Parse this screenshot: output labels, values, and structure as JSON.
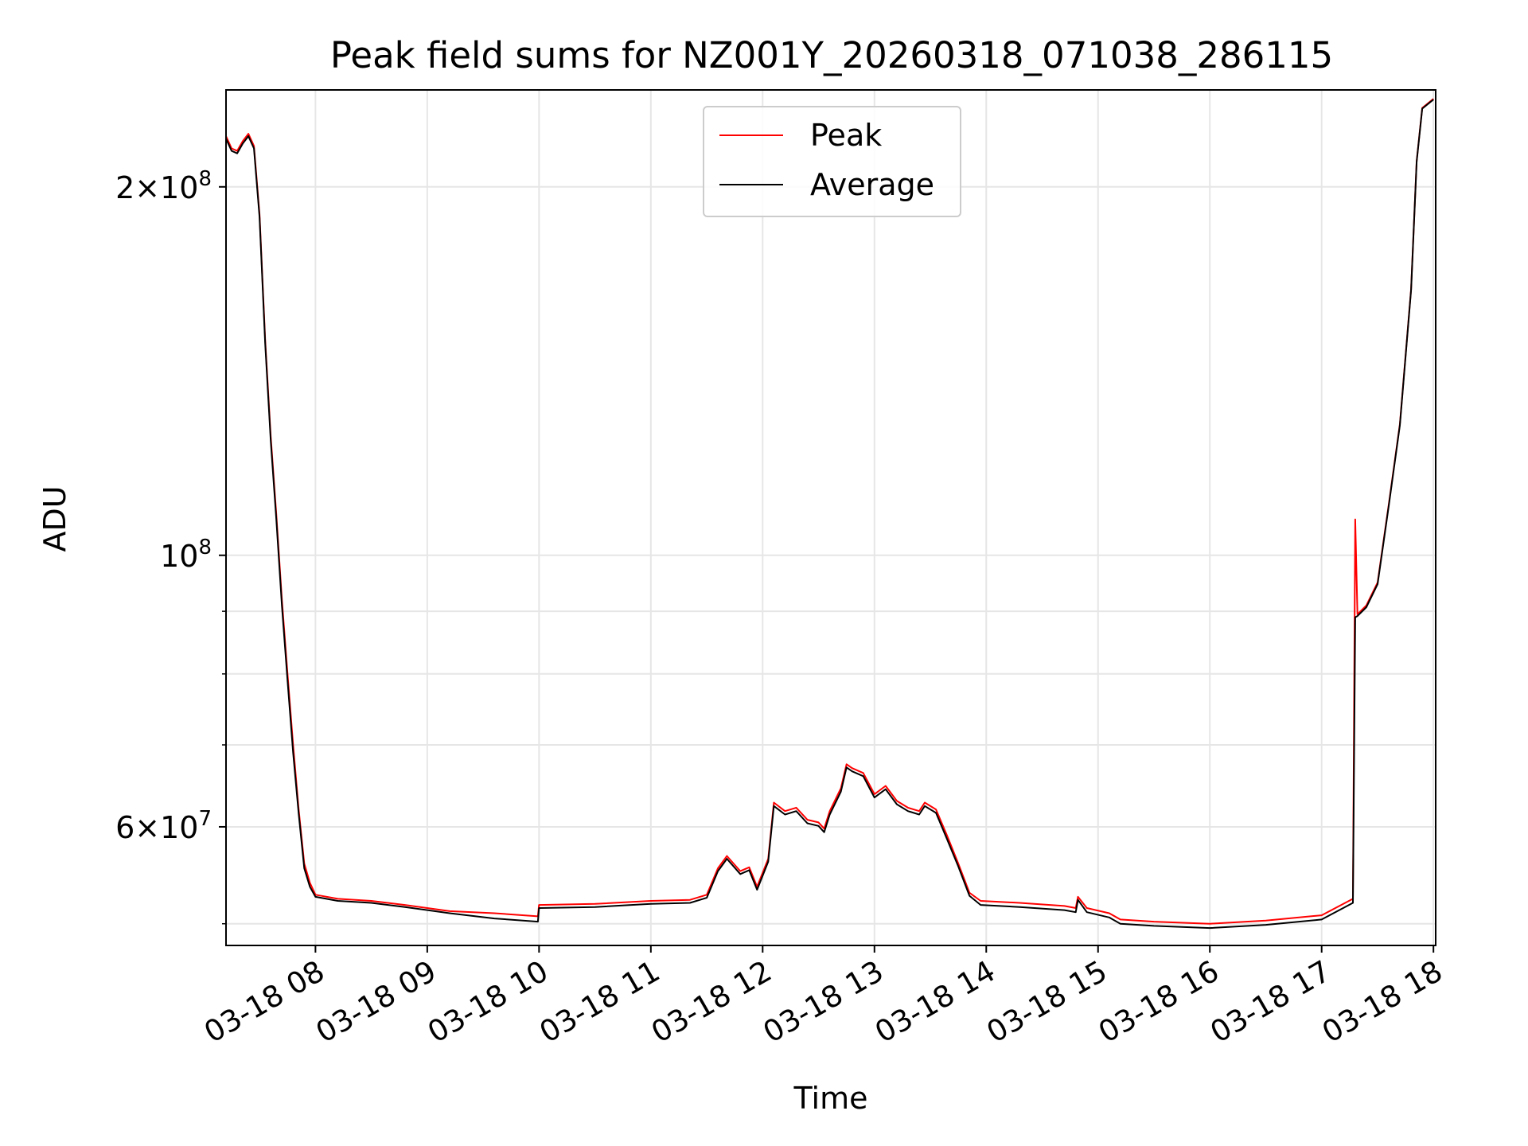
{
  "chart_data": {
    "type": "line",
    "title": "Peak field sums for NZ001Y_20260318_071038_286115",
    "xlabel": "Time",
    "ylabel": "ADU",
    "yscale": "log",
    "grid": true,
    "legend_position": "top-center",
    "xlim_hours": [
      7.2,
      18.02
    ],
    "ylim": [
      48000000,
      240000000
    ],
    "x_ticks": [
      {
        "hour": 8,
        "label": "03-18 08"
      },
      {
        "hour": 9,
        "label": "03-18 09"
      },
      {
        "hour": 10,
        "label": "03-18 10"
      },
      {
        "hour": 11,
        "label": "03-18 11"
      },
      {
        "hour": 12,
        "label": "03-18 12"
      },
      {
        "hour": 13,
        "label": "03-18 13"
      },
      {
        "hour": 14,
        "label": "03-18 14"
      },
      {
        "hour": 15,
        "label": "03-18 15"
      },
      {
        "hour": 16,
        "label": "03-18 16"
      },
      {
        "hour": 17,
        "label": "03-18 17"
      },
      {
        "hour": 18,
        "label": "03-18 18"
      }
    ],
    "y_major_ticks": [
      {
        "value": 60000000,
        "base": "6",
        "exp": "7"
      },
      {
        "value": 100000000,
        "base": "",
        "exp": "8"
      },
      {
        "value": 200000000,
        "base": "2",
        "exp": "8"
      }
    ],
    "y_minor_ticks": [
      50000000,
      70000000,
      80000000,
      90000000
    ],
    "series": [
      {
        "name": "Peak",
        "color": "#ff0000",
        "points": [
          [
            7.2,
            220
          ],
          [
            7.25,
            215
          ],
          [
            7.3,
            214
          ],
          [
            7.35,
            218
          ],
          [
            7.4,
            221
          ],
          [
            7.45,
            216
          ],
          [
            7.5,
            190
          ],
          [
            7.55,
            150
          ],
          [
            7.6,
            125
          ],
          [
            7.65,
            108
          ],
          [
            7.7,
            92
          ],
          [
            7.75,
            80
          ],
          [
            7.8,
            70
          ],
          [
            7.85,
            62
          ],
          [
            7.9,
            56
          ],
          [
            7.95,
            54
          ],
          [
            8.0,
            52.8
          ],
          [
            8.2,
            52.4
          ],
          [
            8.5,
            52.2
          ],
          [
            8.8,
            51.8
          ],
          [
            9.2,
            51.2
          ],
          [
            9.6,
            51.0
          ],
          [
            9.99,
            50.7
          ],
          [
            10.0,
            51.8
          ],
          [
            10.5,
            51.9
          ],
          [
            11.0,
            52.2
          ],
          [
            11.35,
            52.3
          ],
          [
            11.5,
            52.8
          ],
          [
            11.6,
            55.5
          ],
          [
            11.68,
            56.8
          ],
          [
            11.8,
            55.2
          ],
          [
            11.88,
            55.6
          ],
          [
            11.95,
            53.6
          ],
          [
            12.05,
            56.5
          ],
          [
            12.1,
            62.8
          ],
          [
            12.2,
            61.8
          ],
          [
            12.3,
            62.2
          ],
          [
            12.4,
            60.8
          ],
          [
            12.5,
            60.5
          ],
          [
            12.55,
            59.8
          ],
          [
            12.6,
            61.8
          ],
          [
            12.7,
            64.5
          ],
          [
            12.75,
            67.5
          ],
          [
            12.8,
            67.0
          ],
          [
            12.9,
            66.4
          ],
          [
            13.0,
            63.8
          ],
          [
            13.1,
            64.8
          ],
          [
            13.2,
            63.0
          ],
          [
            13.3,
            62.2
          ],
          [
            13.4,
            61.8
          ],
          [
            13.45,
            62.8
          ],
          [
            13.55,
            62.0
          ],
          [
            13.65,
            59.0
          ],
          [
            13.75,
            56.0
          ],
          [
            13.85,
            53.0
          ],
          [
            13.95,
            52.2
          ],
          [
            14.3,
            52.0
          ],
          [
            14.7,
            51.7
          ],
          [
            14.8,
            51.5
          ],
          [
            14.82,
            52.6
          ],
          [
            14.9,
            51.5
          ],
          [
            15.1,
            51.0
          ],
          [
            15.2,
            50.4
          ],
          [
            15.5,
            50.2
          ],
          [
            16.0,
            50.0
          ],
          [
            16.5,
            50.3
          ],
          [
            17.0,
            50.8
          ],
          [
            17.28,
            52.4
          ],
          [
            17.3,
            107
          ],
          [
            17.32,
            89.5
          ],
          [
            17.4,
            91
          ],
          [
            17.5,
            95
          ],
          [
            17.6,
            110
          ],
          [
            17.7,
            128
          ],
          [
            17.8,
            165
          ],
          [
            17.85,
            210
          ],
          [
            17.9,
            232
          ],
          [
            18.0,
            236
          ]
        ]
      },
      {
        "name": "Average",
        "color": "#000000",
        "points": [
          [
            7.2,
            219
          ],
          [
            7.25,
            214
          ],
          [
            7.3,
            213
          ],
          [
            7.35,
            217
          ],
          [
            7.4,
            220
          ],
          [
            7.45,
            215
          ],
          [
            7.5,
            189
          ],
          [
            7.55,
            149
          ],
          [
            7.6,
            124
          ],
          [
            7.65,
            107
          ],
          [
            7.7,
            91
          ],
          [
            7.75,
            79
          ],
          [
            7.8,
            69
          ],
          [
            7.85,
            61.5
          ],
          [
            7.9,
            55.5
          ],
          [
            7.95,
            53.6
          ],
          [
            8.0,
            52.6
          ],
          [
            8.2,
            52.2
          ],
          [
            8.5,
            52.0
          ],
          [
            8.8,
            51.6
          ],
          [
            9.2,
            51.0
          ],
          [
            9.6,
            50.5
          ],
          [
            9.99,
            50.2
          ],
          [
            10.0,
            51.5
          ],
          [
            10.5,
            51.6
          ],
          [
            11.0,
            51.9
          ],
          [
            11.35,
            52.0
          ],
          [
            11.5,
            52.5
          ],
          [
            11.6,
            55.2
          ],
          [
            11.68,
            56.5
          ],
          [
            11.8,
            54.9
          ],
          [
            11.88,
            55.3
          ],
          [
            11.95,
            53.3
          ],
          [
            12.05,
            56.2
          ],
          [
            12.1,
            62.4
          ],
          [
            12.2,
            61.4
          ],
          [
            12.3,
            61.8
          ],
          [
            12.4,
            60.4
          ],
          [
            12.5,
            60.1
          ],
          [
            12.55,
            59.4
          ],
          [
            12.6,
            61.4
          ],
          [
            12.7,
            64.1
          ],
          [
            12.75,
            67.1
          ],
          [
            12.8,
            66.6
          ],
          [
            12.9,
            66.0
          ],
          [
            13.0,
            63.4
          ],
          [
            13.1,
            64.4
          ],
          [
            13.2,
            62.6
          ],
          [
            13.3,
            61.8
          ],
          [
            13.4,
            61.4
          ],
          [
            13.45,
            62.4
          ],
          [
            13.55,
            61.6
          ],
          [
            13.65,
            58.6
          ],
          [
            13.75,
            55.7
          ],
          [
            13.85,
            52.7
          ],
          [
            13.95,
            51.8
          ],
          [
            14.3,
            51.6
          ],
          [
            14.7,
            51.3
          ],
          [
            14.8,
            51.1
          ],
          [
            14.82,
            52.3
          ],
          [
            14.9,
            51.1
          ],
          [
            15.1,
            50.6
          ],
          [
            15.2,
            50.0
          ],
          [
            15.5,
            49.8
          ],
          [
            16.0,
            49.6
          ],
          [
            16.5,
            49.9
          ],
          [
            17.0,
            50.4
          ],
          [
            17.28,
            52.0
          ],
          [
            17.3,
            89
          ],
          [
            17.32,
            89.2
          ],
          [
            17.4,
            90.7
          ],
          [
            17.5,
            94.7
          ],
          [
            17.6,
            109.7
          ],
          [
            17.7,
            127.7
          ],
          [
            17.8,
            164.7
          ],
          [
            17.85,
            209.7
          ],
          [
            17.9,
            231.7
          ],
          [
            18.0,
            235.7
          ]
        ]
      }
    ]
  }
}
